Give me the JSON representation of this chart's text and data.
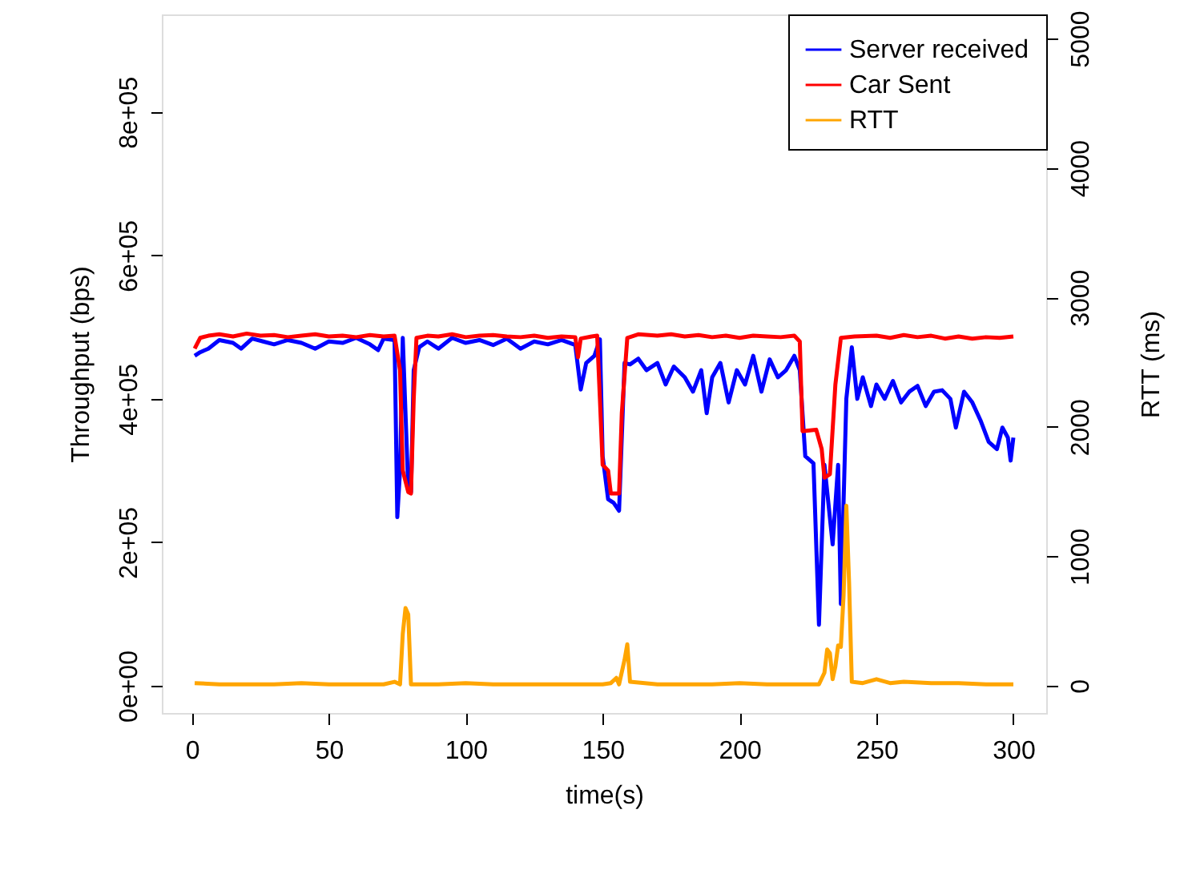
{
  "chart_data": {
    "type": "line",
    "xlabel": "time(s)",
    "ylabel": "Throughput (bps)",
    "y2label": "RTT (ms)",
    "xlim": [
      -11,
      312
    ],
    "xticks": [
      0,
      50,
      100,
      150,
      200,
      250,
      300
    ],
    "ylim": [
      -38000,
      936000
    ],
    "yticks": [
      {
        "value": 0,
        "label": "0e+00"
      },
      {
        "value": 200000,
        "label": "2e+05"
      },
      {
        "value": 400000,
        "label": "4e+05"
      },
      {
        "value": 600000,
        "label": "6e+05"
      },
      {
        "value": 800000,
        "label": "8e+05"
      }
    ],
    "y2lim": [
      -211,
      5186
    ],
    "y2ticks": [
      0,
      1000,
      2000,
      3000,
      4000,
      5000
    ],
    "grid": false,
    "legend": "top right",
    "line_style": "solid",
    "marker": "none",
    "series": [
      {
        "name": "Server received",
        "color": "#0000ff",
        "x": [
          1,
          3,
          6,
          10,
          15,
          18,
          22,
          26,
          30,
          35,
          40,
          45,
          50,
          55,
          60,
          65,
          68,
          70,
          74,
          75,
          76,
          77,
          78,
          79,
          80,
          81,
          83,
          86,
          90,
          95,
          100,
          105,
          110,
          115,
          120,
          125,
          130,
          135,
          140,
          142,
          144,
          147,
          149,
          150,
          152,
          154,
          156,
          158,
          160,
          163,
          166,
          170,
          173,
          176,
          180,
          183,
          186,
          188,
          190,
          193,
          196,
          199,
          202,
          205,
          208,
          211,
          214,
          217,
          220,
          222,
          224,
          227,
          229,
          231,
          234,
          236,
          237,
          239,
          241,
          243,
          245,
          248,
          250,
          253,
          256,
          259,
          262,
          265,
          268,
          271,
          274,
          277,
          279,
          282,
          285,
          288,
          291,
          294,
          296,
          298,
          299,
          300
        ],
        "values": [
          460000,
          465000,
          470000,
          482000,
          478000,
          470000,
          484000,
          480000,
          476000,
          482000,
          478000,
          470000,
          480000,
          478000,
          485000,
          476000,
          468000,
          484000,
          482000,
          235000,
          300000,
          485000,
          380000,
          275000,
          270000,
          440000,
          472000,
          480000,
          470000,
          485000,
          478000,
          482000,
          475000,
          484000,
          470000,
          480000,
          476000,
          482000,
          475000,
          413000,
          450000,
          460000,
          483000,
          320000,
          260000,
          255000,
          244000,
          450000,
          448000,
          456000,
          440000,
          450000,
          420000,
          445000,
          430000,
          410000,
          440000,
          380000,
          430000,
          450000,
          395000,
          440000,
          420000,
          460000,
          410000,
          455000,
          430000,
          440000,
          460000,
          440000,
          320000,
          310000,
          85000,
          308000,
          197000,
          308000,
          114000,
          400000,
          472000,
          400000,
          430000,
          390000,
          420000,
          400000,
          425000,
          395000,
          410000,
          418000,
          390000,
          410000,
          412000,
          400000,
          360000,
          410000,
          395000,
          370000,
          340000,
          330000,
          360000,
          346000,
          314000,
          346000
        ]
      },
      {
        "name": "Car Sent",
        "color": "#ff0000",
        "x": [
          1,
          3,
          6,
          10,
          15,
          20,
          25,
          30,
          35,
          40,
          45,
          50,
          55,
          60,
          65,
          70,
          74,
          76,
          77,
          79,
          80,
          81,
          82,
          86,
          90,
          95,
          100,
          105,
          110,
          115,
          120,
          125,
          130,
          135,
          140,
          141,
          142,
          146,
          148,
          149,
          150,
          152,
          153,
          156,
          157,
          159,
          163,
          170,
          175,
          180,
          185,
          190,
          195,
          200,
          205,
          210,
          215,
          220,
          222,
          223,
          228,
          230,
          231,
          233,
          235,
          237,
          242,
          250,
          255,
          260,
          265,
          270,
          275,
          280,
          285,
          290,
          295,
          300
        ],
        "values": [
          470000,
          485000,
          488000,
          490000,
          487000,
          491000,
          488000,
          489000,
          486000,
          488000,
          490000,
          487000,
          488000,
          486000,
          489000,
          487000,
          488000,
          440000,
          300000,
          270000,
          268000,
          400000,
          485000,
          488000,
          487000,
          490000,
          486000,
          488000,
          489000,
          487000,
          486000,
          488000,
          485000,
          487000,
          486000,
          458000,
          484000,
          487000,
          488000,
          400000,
          308000,
          300000,
          268000,
          268000,
          380000,
          485000,
          490000,
          488000,
          490000,
          487000,
          489000,
          486000,
          488000,
          485000,
          488000,
          487000,
          486000,
          488000,
          480000,
          355000,
          357000,
          330000,
          290000,
          295000,
          420000,
          485000,
          487000,
          488000,
          485000,
          489000,
          486000,
          488000,
          484000,
          487000,
          484000,
          486000,
          485000,
          487000
        ]
      },
      {
        "name": "RTT",
        "color": "#ffa500",
        "axis": "y2",
        "x": [
          1,
          10,
          20,
          30,
          40,
          50,
          60,
          70,
          74,
          76,
          77,
          78,
          79,
          80,
          90,
          100,
          110,
          120,
          130,
          140,
          150,
          153,
          155,
          156,
          158,
          159,
          160,
          170,
          180,
          190,
          200,
          210,
          220,
          229,
          231,
          232,
          233,
          234,
          235,
          236,
          237,
          238,
          239,
          240,
          241,
          245,
          250,
          255,
          260,
          270,
          280,
          290,
          300
        ],
        "values": [
          20,
          10,
          10,
          10,
          20,
          10,
          10,
          10,
          30,
          10,
          400,
          600,
          550,
          10,
          10,
          20,
          10,
          10,
          10,
          10,
          10,
          20,
          60,
          10,
          200,
          320,
          30,
          10,
          10,
          10,
          20,
          10,
          10,
          10,
          100,
          280,
          250,
          50,
          150,
          310,
          300,
          700,
          1390,
          800,
          30,
          20,
          50,
          20,
          30,
          20,
          20,
          10,
          10
        ]
      }
    ]
  }
}
